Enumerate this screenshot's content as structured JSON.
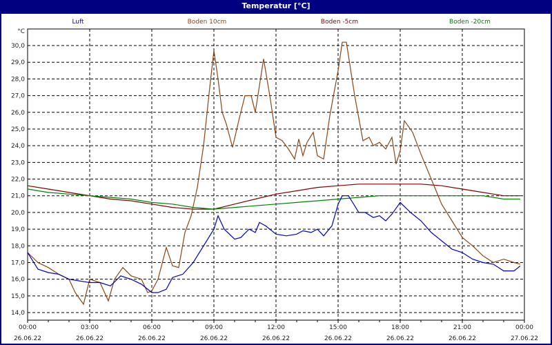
{
  "window": {
    "title": "Temperatur [°C]"
  },
  "chart_data": {
    "type": "line",
    "title": "Temperatur [°C]",
    "ylabel": "°C",
    "xlabel": "",
    "ylim": [
      14.0,
      30.0
    ],
    "yticks": [
      "30,0",
      "29,0",
      "28,0",
      "27,0",
      "26,0",
      "25,0",
      "24,0",
      "23,0",
      "22,0",
      "21,0",
      "20,0",
      "19,0",
      "18,0",
      "17,0",
      "16,0",
      "15,0",
      "14,0"
    ],
    "xticks": [
      {
        "time": "00:00",
        "date": "26.06.22"
      },
      {
        "time": "03:00",
        "date": "26.06.22"
      },
      {
        "time": "06:00",
        "date": "26.06.22"
      },
      {
        "time": "09:00",
        "date": "26.06.22"
      },
      {
        "time": "12:00",
        "date": "26.06.22"
      },
      {
        "time": "15:00",
        "date": "26.06.22"
      },
      {
        "time": "18:00",
        "date": "26.06.22"
      },
      {
        "time": "21:00",
        "date": "26.06.22"
      },
      {
        "time": "00:00",
        "date": "27.06.22"
      }
    ],
    "grid": true,
    "legend_position": "top",
    "x_unit": "hours since 26.06.22 00:00",
    "series": [
      {
        "name": "Luft",
        "color": "#0000c0",
        "x": [
          0,
          0.5,
          1,
          1.5,
          2,
          2.5,
          3,
          3.5,
          4,
          4.5,
          5,
          5.5,
          6,
          6.3,
          6.7,
          7,
          7.5,
          8,
          8.5,
          9,
          9.2,
          9.5,
          10,
          10.3,
          10.7,
          11,
          11.2,
          11.5,
          12,
          12.5,
          13,
          13.3,
          13.7,
          14,
          14.3,
          14.7,
          15,
          15.2,
          15.5,
          16,
          16.3,
          16.7,
          17,
          17.3,
          17.6,
          18,
          18.5,
          19,
          19.5,
          20,
          20.5,
          21,
          21.5,
          22,
          22.5,
          23,
          23.5,
          23.8
        ],
        "values": [
          17.6,
          16.6,
          16.4,
          16.3,
          16.0,
          15.9,
          15.8,
          15.8,
          15.6,
          16.2,
          16.0,
          15.7,
          15.2,
          15.2,
          15.4,
          16.1,
          16.3,
          17.0,
          18.0,
          19.0,
          19.8,
          19.0,
          18.4,
          18.5,
          19.0,
          18.8,
          19.4,
          19.2,
          18.7,
          18.6,
          18.7,
          18.9,
          18.8,
          19.0,
          18.6,
          19.2,
          20.5,
          21.0,
          21.0,
          20.0,
          20.0,
          19.7,
          19.8,
          19.5,
          19.9,
          20.6,
          20.0,
          19.5,
          18.8,
          18.3,
          17.8,
          17.6,
          17.2,
          17.0,
          16.9,
          16.5,
          16.5,
          16.8
        ]
      },
      {
        "name": "Boden 10cm",
        "color": "#8b4513",
        "x": [
          0,
          0.5,
          1,
          1.5,
          2,
          2.3,
          2.7,
          3,
          3.5,
          3.9,
          4.2,
          4.6,
          5,
          5.5,
          5.8,
          6,
          6.3,
          6.7,
          7,
          7.3,
          7.6,
          7.9,
          8.2,
          8.5,
          8.8,
          9.0,
          9.2,
          9.4,
          9.6,
          9.9,
          10.2,
          10.5,
          10.8,
          11.0,
          11.4,
          11.7,
          12.0,
          12.3,
          12.6,
          12.9,
          13.1,
          13.3,
          13.5,
          13.8,
          14.0,
          14.3,
          14.6,
          15.0,
          15.2,
          15.4,
          15.8,
          16.2,
          16.5,
          16.7,
          17.0,
          17.3,
          17.6,
          17.8,
          18.0,
          18.2,
          18.6,
          19.0,
          19.5,
          20.0,
          20.5,
          21.0,
          21.5,
          22.0,
          22.5,
          23.0,
          23.5,
          23.8
        ],
        "values": [
          17.6,
          17.0,
          16.7,
          16.3,
          16.0,
          15.2,
          14.5,
          16.0,
          15.8,
          14.7,
          16.0,
          16.7,
          16.2,
          16.0,
          15.2,
          15.3,
          16.0,
          17.9,
          16.8,
          16.7,
          18.8,
          19.8,
          21.5,
          24.0,
          27.5,
          29.7,
          28.0,
          26.0,
          25.3,
          23.9,
          25.5,
          27.0,
          27.0,
          26.0,
          29.2,
          27.0,
          24.5,
          24.3,
          23.8,
          23.2,
          24.4,
          23.4,
          24.2,
          24.8,
          23.4,
          23.2,
          25.8,
          28.5,
          30.2,
          30.2,
          27.0,
          24.3,
          24.5,
          24.0,
          24.2,
          23.8,
          24.5,
          22.9,
          23.7,
          25.5,
          24.8,
          23.5,
          22.0,
          20.5,
          19.5,
          18.5,
          18.0,
          17.4,
          17.0,
          17.2,
          17.0,
          16.9
        ]
      },
      {
        "name": "Boden -5cm",
        "color": "#800000",
        "x": [
          0,
          1,
          2,
          3,
          4,
          5,
          6,
          7,
          8,
          9,
          10,
          11,
          12,
          13,
          14,
          15,
          16,
          17,
          18,
          19,
          20,
          21,
          22,
          23,
          23.8
        ],
        "values": [
          21.6,
          21.4,
          21.2,
          21.0,
          20.8,
          20.7,
          20.5,
          20.3,
          20.2,
          20.2,
          20.5,
          20.8,
          21.1,
          21.3,
          21.5,
          21.6,
          21.7,
          21.7,
          21.7,
          21.7,
          21.6,
          21.4,
          21.2,
          21.0,
          21.0
        ]
      },
      {
        "name": "Boden -20cm",
        "color": "#008000",
        "x": [
          0,
          1,
          2,
          3,
          4,
          5,
          6,
          7,
          8,
          9,
          10,
          11,
          12,
          13,
          14,
          15,
          16,
          17,
          18,
          19,
          20,
          21,
          22,
          23,
          23.8
        ],
        "values": [
          21.4,
          21.2,
          21.1,
          21.0,
          20.9,
          20.8,
          20.6,
          20.5,
          20.3,
          20.2,
          20.3,
          20.4,
          20.5,
          20.6,
          20.7,
          20.8,
          20.9,
          21.0,
          21.0,
          21.0,
          21.0,
          21.0,
          21.0,
          20.8,
          20.8
        ]
      }
    ]
  }
}
